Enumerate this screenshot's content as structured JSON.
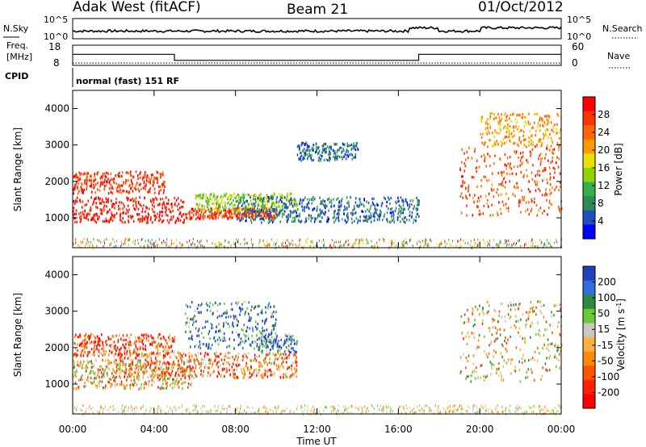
{
  "header": {
    "station": "Adak West (fitACF)",
    "beam": "Beam 21",
    "date": "01/Oct/2012"
  },
  "noise_panel": {
    "left_label": "N.Sky",
    "right_label": "N.Search",
    "left_ticks": [
      "10^5",
      "10^0"
    ],
    "right_ticks": [
      "10^5",
      "10^0"
    ]
  },
  "freq_panel": {
    "left_label_1": "Freq.",
    "left_label_2": "[MHz]",
    "right_label": "Nave",
    "left_ticks": [
      "18",
      "8"
    ],
    "right_ticks": [
      "60",
      "0"
    ],
    "freq_steps": [
      {
        "start_h": 0,
        "end_h": 5.0,
        "mhz": 13.5
      },
      {
        "start_h": 5.0,
        "end_h": 17.0,
        "mhz": 10.5
      },
      {
        "start_h": 17.0,
        "end_h": 24,
        "mhz": 13.5
      }
    ],
    "nave_value": 7
  },
  "cpid_panel": {
    "label": "CPID",
    "text": "normal (fast) 151 RF"
  },
  "power_panel": {
    "ylabel": "Slant Range [km]",
    "colorbar_label": "Power [dB]",
    "colorbar_ticks": [
      "28",
      "24",
      "20",
      "16",
      "12",
      "8",
      "4"
    ],
    "colorbar_colors": [
      "#ff0000",
      "#ff3300",
      "#ff6600",
      "#ff9900",
      "#e8e000",
      "#8fd400",
      "#33b04a",
      "#2e8b57",
      "#1f4fbf",
      "#0000ff"
    ],
    "yticks": [
      "4000",
      "3000",
      "2000",
      "1000"
    ]
  },
  "velocity_panel": {
    "ylabel": "Slant Range [km]",
    "colorbar_label": "Velocity [m s^-1]",
    "colorbar_ticks": [
      "200",
      "100",
      "50",
      "15",
      "-15",
      "-50",
      "-100",
      "-200"
    ],
    "colorbar_colors": [
      "#1f3fbf",
      "#2f6fdf",
      "#2e8b3e",
      "#66cc33",
      "#c8c8c0",
      "#ffb040",
      "#ff8a00",
      "#ff5500",
      "#ff2200",
      "#ff0000"
    ],
    "yticks": [
      "4000",
      "3000",
      "2000",
      "1000"
    ]
  },
  "chart_data": {
    "type": "heatmap",
    "xlabel": "Time UT",
    "xticks": [
      "00:00",
      "04:00",
      "08:00",
      "12:00",
      "16:00",
      "20:00",
      "00:00"
    ],
    "x_range_hours": [
      0,
      24
    ],
    "y_range_km": [
      180,
      4500
    ],
    "power_regions": [
      {
        "t0": 0,
        "t1": 5.5,
        "r0": 900,
        "r1": 1600,
        "dB": 28
      },
      {
        "t0": 0,
        "t1": 4.5,
        "r0": 1700,
        "r1": 2300,
        "dB": 26
      },
      {
        "t0": 5.5,
        "t1": 10,
        "r0": 1000,
        "r1": 1300,
        "dB": 26
      },
      {
        "t0": 6,
        "t1": 11,
        "r0": 1200,
        "r1": 1700,
        "dB": 14
      },
      {
        "t0": 8,
        "t1": 17,
        "r0": 900,
        "r1": 1600,
        "dB": 6
      },
      {
        "t0": 11,
        "t1": 14,
        "r0": 2600,
        "r1": 3100,
        "dB": 6
      },
      {
        "t0": 19,
        "t1": 24,
        "r0": 1100,
        "r1": 3000,
        "dB": 24
      },
      {
        "t0": 20,
        "t1": 24,
        "r0": 3000,
        "r1": 3900,
        "dB": 20
      }
    ],
    "velocity_regions": [
      {
        "t0": 0,
        "t1": 6,
        "r0": 900,
        "r1": 1700,
        "v": -20
      },
      {
        "t0": 2,
        "t1": 11,
        "r0": 1200,
        "r1": 1900,
        "v": -80
      },
      {
        "t0": 5.5,
        "t1": 10,
        "r0": 2000,
        "r1": 3300,
        "v": 180
      },
      {
        "t0": 9,
        "t1": 11,
        "r0": 1900,
        "r1": 2400,
        "v": 160
      },
      {
        "t0": 19,
        "t1": 24,
        "r0": 1100,
        "r1": 3300,
        "v": -5
      },
      {
        "t0": 0,
        "t1": 5,
        "r0": 1800,
        "r1": 2400,
        "v": -150
      }
    ]
  }
}
